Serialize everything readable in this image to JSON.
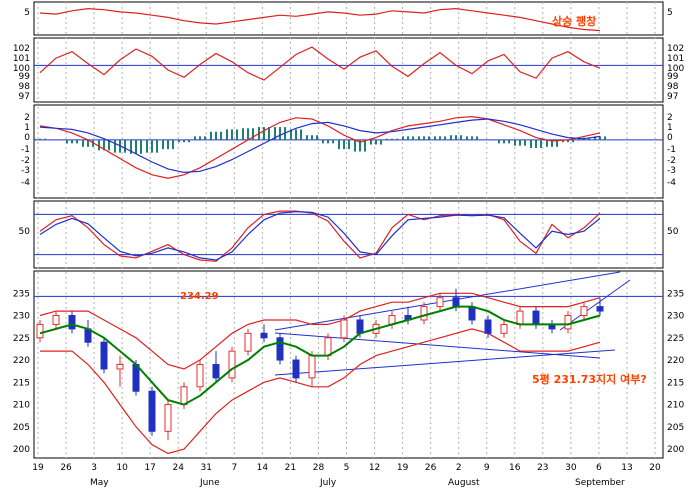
{
  "chart_data": {
    "type": "candlestick",
    "colors": {
      "price_line": "#e02020",
      "signal_line": "#2030d0",
      "ma5": "#008000",
      "histogram": "#208070",
      "up_candle": "#e03030",
      "down_candle": "#2030c0",
      "annotation": "#ff4000",
      "level_line": "#2030d0"
    },
    "x_axis": {
      "day_ticks": [
        "19",
        "26",
        "3",
        "10",
        "17",
        "24",
        "31",
        "7",
        "14",
        "21",
        "28",
        "5",
        "12",
        "19",
        "26",
        "2",
        "9",
        "16",
        "23",
        "30",
        "6",
        "13",
        "20"
      ],
      "month_labels": [
        "May",
        "June",
        "July",
        "August",
        "September"
      ]
    },
    "panels": [
      {
        "name": "top",
        "y_ticks": [
          "5"
        ],
        "annotation": "상승 팽창",
        "series": [
          {
            "color": "red",
            "values": [
              5.0,
              4.9,
              5.2,
              5.4,
              5.3,
              5.1,
              5.0,
              4.8,
              4.6,
              4.3,
              4.1,
              4.0,
              4.2,
              4.4,
              4.6,
              4.8,
              4.7,
              4.9,
              5.1,
              5.0,
              4.8,
              4.9,
              5.2,
              5.1,
              5.0,
              5.3,
              5.4,
              5.2,
              5.0,
              4.8,
              4.6,
              4.3,
              4.0,
              3.7,
              3.5,
              3.4
            ]
          }
        ]
      },
      {
        "name": "oscillator",
        "y_ticks": [
          "102",
          "101",
          "100",
          "99",
          "98",
          "97"
        ],
        "reference_line": 100,
        "series": [
          {
            "color": "red",
            "values": [
              99.2,
              100.8,
              101.5,
              100.2,
              99.0,
              100.6,
              101.8,
              101.0,
              99.5,
              98.7,
              100.1,
              101.3,
              100.4,
              99.2,
              98.4,
              99.8,
              101.2,
              102.0,
              100.7,
              99.6,
              100.9,
              101.6,
              99.9,
              98.8,
              100.2,
              101.4,
              100.0,
              99.1,
              100.5,
              101.2,
              99.3,
              98.6,
              100.8,
              101.5,
              100.4,
              99.7
            ]
          }
        ]
      },
      {
        "name": "macd",
        "y_ticks": [
          "2",
          "1",
          "0",
          "-1",
          "-2",
          "-3",
          "-4"
        ],
        "series": [
          {
            "color": "red",
            "values": [
              1.2,
              1.0,
              0.6,
              0.0,
              -0.8,
              -1.6,
              -2.4,
              -3.0,
              -3.3,
              -3.0,
              -2.4,
              -1.6,
              -0.8,
              0.0,
              0.8,
              1.5,
              1.9,
              1.8,
              1.2,
              0.4,
              -0.2,
              0.2,
              0.8,
              1.2,
              1.4,
              1.6,
              1.9,
              2.0,
              1.8,
              1.3,
              0.8,
              0.2,
              -0.1,
              0.0,
              0.3,
              0.6
            ]
          },
          {
            "color": "blue",
            "values": [
              1.1,
              1.0,
              0.9,
              0.6,
              0.1,
              -0.5,
              -1.2,
              -1.9,
              -2.5,
              -2.8,
              -2.7,
              -2.3,
              -1.7,
              -1.0,
              -0.3,
              0.4,
              1.0,
              1.4,
              1.5,
              1.2,
              0.8,
              0.6,
              0.7,
              0.9,
              1.1,
              1.3,
              1.5,
              1.7,
              1.8,
              1.6,
              1.3,
              0.9,
              0.5,
              0.2,
              0.1,
              0.3
            ]
          }
        ],
        "histogram": [
          0.1,
          0.0,
          -0.3,
          -0.6,
          -0.9,
          -1.1,
          -1.2,
          -1.1,
          -0.8,
          -0.2,
          0.3,
          0.7,
          0.9,
          1.0,
          1.1,
          1.1,
          0.9,
          0.4,
          -0.3,
          -0.8,
          -1.0,
          -0.4,
          0.1,
          0.3,
          0.3,
          0.3,
          0.4,
          0.3,
          0.0,
          -0.3,
          -0.5,
          -0.7,
          -0.6,
          -0.2,
          0.2,
          0.3
        ]
      },
      {
        "name": "stochastic",
        "y_ticks": [
          "50"
        ],
        "upper_band": 80,
        "lower_band": 20,
        "series": [
          {
            "color": "red",
            "values": [
              55,
              72,
              78,
              60,
              35,
              18,
              15,
              25,
              35,
              20,
              12,
              10,
              30,
              60,
              80,
              85,
              85,
              82,
              70,
              40,
              15,
              22,
              60,
              80,
              72,
              78,
              80,
              78,
              80,
              72,
              40,
              22,
              65,
              45,
              60,
              82
            ]
          },
          {
            "color": "blue",
            "values": [
              50,
              65,
              74,
              66,
              45,
              25,
              18,
              22,
              30,
              24,
              15,
              12,
              24,
              50,
              72,
              82,
              84,
              83,
              76,
              52,
              24,
              20,
              48,
              72,
              74,
              76,
              79,
              78,
              79,
              75,
              52,
              30,
              55,
              50,
              55,
              74
            ]
          }
        ]
      },
      {
        "name": "price",
        "y_ticks": [
          "235",
          "230",
          "225",
          "220",
          "215",
          "210",
          "205",
          "200"
        ],
        "y_range": [
          198,
          240
        ],
        "resistance_line": 234.29,
        "resistance_label": "234.29",
        "annotation": "5평 231.73지지 여부?",
        "candles": [
          {
            "o": 225,
            "h": 229,
            "l": 224,
            "c": 228
          },
          {
            "o": 228,
            "h": 231,
            "l": 227,
            "c": 230
          },
          {
            "o": 230,
            "h": 231,
            "l": 226,
            "c": 227
          },
          {
            "o": 227,
            "h": 229,
            "l": 223,
            "c": 224
          },
          {
            "o": 224,
            "h": 225,
            "l": 217,
            "c": 218
          },
          {
            "o": 218,
            "h": 221,
            "l": 214,
            "c": 219
          },
          {
            "o": 219,
            "h": 220,
            "l": 212,
            "c": 213
          },
          {
            "o": 213,
            "h": 214,
            "l": 203,
            "c": 204
          },
          {
            "o": 204,
            "h": 211,
            "l": 202,
            "c": 210
          },
          {
            "o": 210,
            "h": 215,
            "l": 209,
            "c": 214
          },
          {
            "o": 214,
            "h": 220,
            "l": 213,
            "c": 219
          },
          {
            "o": 219,
            "h": 222,
            "l": 215,
            "c": 216
          },
          {
            "o": 216,
            "h": 223,
            "l": 215,
            "c": 222
          },
          {
            "o": 222,
            "h": 227,
            "l": 221,
            "c": 226
          },
          {
            "o": 226,
            "h": 228,
            "l": 224,
            "c": 225
          },
          {
            "o": 225,
            "h": 226,
            "l": 219,
            "c": 220
          },
          {
            "o": 220,
            "h": 221,
            "l": 215,
            "c": 216
          },
          {
            "o": 216,
            "h": 222,
            "l": 214,
            "c": 221
          },
          {
            "o": 221,
            "h": 226,
            "l": 220,
            "c": 225
          },
          {
            "o": 225,
            "h": 230,
            "l": 224,
            "c": 229
          },
          {
            "o": 229,
            "h": 230,
            "l": 225,
            "c": 226
          },
          {
            "o": 226,
            "h": 229,
            "l": 225,
            "c": 228
          },
          {
            "o": 228,
            "h": 231,
            "l": 227,
            "c": 230
          },
          {
            "o": 230,
            "h": 232,
            "l": 228,
            "c": 229
          },
          {
            "o": 229,
            "h": 233,
            "l": 228,
            "c": 232
          },
          {
            "o": 232,
            "h": 235,
            "l": 231,
            "c": 234
          },
          {
            "o": 234,
            "h": 236,
            "l": 231,
            "c": 232
          },
          {
            "o": 232,
            "h": 233,
            "l": 228,
            "c": 229
          },
          {
            "o": 229,
            "h": 230,
            "l": 225,
            "c": 226
          },
          {
            "o": 226,
            "h": 229,
            "l": 225,
            "c": 228
          },
          {
            "o": 228,
            "h": 232,
            "l": 227,
            "c": 231
          },
          {
            "o": 231,
            "h": 232,
            "l": 227,
            "c": 228
          },
          {
            "o": 228,
            "h": 229,
            "l": 226,
            "c": 227
          },
          {
            "o": 227,
            "h": 231,
            "l": 226,
            "c": 230
          },
          {
            "o": 230,
            "h": 233,
            "l": 229,
            "c": 232
          },
          {
            "o": 232,
            "h": 234,
            "l": 230,
            "c": 231
          }
        ],
        "ma5": [
          226,
          227,
          228,
          227,
          225,
          222,
          219,
          215,
          211,
          210,
          212,
          215,
          218,
          220,
          223,
          224,
          223,
          221,
          221,
          223,
          226,
          227,
          228,
          229,
          230,
          231,
          232,
          232,
          231,
          229,
          228,
          228,
          228,
          228,
          229,
          230
        ],
        "bollinger_upper": [
          230,
          231,
          231,
          231,
          229,
          227,
          225,
          222,
          219,
          218,
          220,
          223,
          226,
          228,
          229,
          229,
          229,
          228,
          228,
          229,
          231,
          232,
          233,
          233,
          234,
          235,
          235,
          235,
          234,
          233,
          232,
          232,
          232,
          232,
          233,
          234
        ],
        "bollinger_lower": [
          222,
          222,
          222,
          219,
          215,
          210,
          205,
          201,
          199,
          200,
          204,
          208,
          211,
          213,
          215,
          216,
          215,
          214,
          214,
          216,
          219,
          221,
          222,
          223,
          224,
          225,
          226,
          227,
          226,
          224,
          222,
          222,
          222,
          222,
          223,
          224
        ]
      }
    ]
  }
}
